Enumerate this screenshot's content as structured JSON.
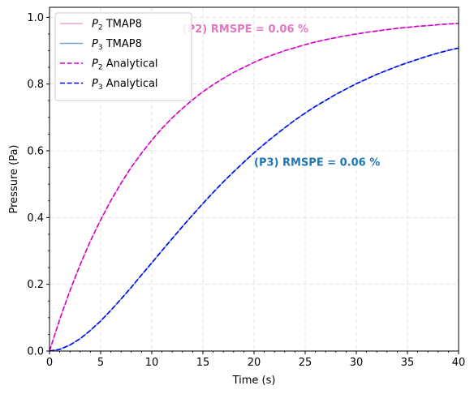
{
  "chart_data": {
    "type": "line",
    "xlabel": "Time (s)",
    "ylabel": "Pressure (Pa)",
    "xlim": [
      0,
      40
    ],
    "ylim": [
      0,
      1.03
    ],
    "xticks": [
      0,
      5,
      10,
      15,
      20,
      25,
      30,
      35,
      40
    ],
    "xtick_labels": [
      "0",
      "5",
      "10",
      "15",
      "20",
      "25",
      "30",
      "35",
      "40"
    ],
    "yticks": [
      0.0,
      0.2,
      0.4,
      0.6,
      0.8,
      1.0
    ],
    "ytick_labels": [
      "0.0",
      "0.2",
      "0.4",
      "0.6",
      "0.8",
      "1.0"
    ],
    "grid": true,
    "legend_position": "top-left",
    "x": [
      0,
      1,
      2,
      3,
      4,
      5,
      6,
      7,
      8,
      9,
      10,
      11,
      12,
      13,
      14,
      15,
      16,
      17,
      18,
      19,
      20,
      21,
      22,
      23,
      24,
      25,
      26,
      27,
      28,
      29,
      30,
      31,
      32,
      33,
      34,
      35,
      36,
      37,
      38,
      39,
      40
    ],
    "series": [
      {
        "name": "TMAP8",
        "subscript_var": "P",
        "subscript": "2",
        "color": "#f4a3d8",
        "style": "solid",
        "values": [
          0.0,
          0.095,
          0.181,
          0.259,
          0.33,
          0.393,
          0.451,
          0.503,
          0.551,
          0.593,
          0.632,
          0.667,
          0.699,
          0.727,
          0.753,
          0.777,
          0.798,
          0.817,
          0.835,
          0.85,
          0.865,
          0.878,
          0.889,
          0.9,
          0.909,
          0.918,
          0.926,
          0.933,
          0.939,
          0.945,
          0.95,
          0.955,
          0.959,
          0.963,
          0.967,
          0.97,
          0.973,
          0.975,
          0.978,
          0.98,
          0.982
        ]
      },
      {
        "name": "TMAP8",
        "subscript_var": "P",
        "subscript": "3",
        "color": "#6ea6d6",
        "style": "solid",
        "values": [
          0.0,
          0.005,
          0.018,
          0.037,
          0.062,
          0.09,
          0.122,
          0.156,
          0.191,
          0.228,
          0.264,
          0.301,
          0.337,
          0.373,
          0.408,
          0.442,
          0.475,
          0.507,
          0.537,
          0.566,
          0.594,
          0.62,
          0.645,
          0.669,
          0.692,
          0.713,
          0.733,
          0.751,
          0.769,
          0.785,
          0.801,
          0.815,
          0.829,
          0.841,
          0.853,
          0.864,
          0.874,
          0.884,
          0.893,
          0.901,
          0.908
        ]
      },
      {
        "name": "Analytical",
        "subscript_var": "P",
        "subscript": "2",
        "color": "#cc00cc",
        "style": "dashed",
        "values": [
          0.0,
          0.095,
          0.181,
          0.259,
          0.33,
          0.393,
          0.451,
          0.503,
          0.551,
          0.593,
          0.632,
          0.667,
          0.699,
          0.727,
          0.753,
          0.777,
          0.798,
          0.817,
          0.835,
          0.85,
          0.865,
          0.878,
          0.889,
          0.9,
          0.909,
          0.918,
          0.926,
          0.933,
          0.939,
          0.945,
          0.95,
          0.955,
          0.959,
          0.963,
          0.967,
          0.97,
          0.973,
          0.975,
          0.978,
          0.98,
          0.982
        ]
      },
      {
        "name": "Analytical",
        "subscript_var": "P",
        "subscript": "3",
        "color": "#0000ee",
        "style": "dashed",
        "values": [
          0.0,
          0.005,
          0.018,
          0.037,
          0.062,
          0.09,
          0.122,
          0.156,
          0.191,
          0.228,
          0.264,
          0.301,
          0.337,
          0.373,
          0.408,
          0.442,
          0.475,
          0.507,
          0.537,
          0.566,
          0.594,
          0.62,
          0.645,
          0.669,
          0.692,
          0.713,
          0.733,
          0.751,
          0.769,
          0.785,
          0.801,
          0.815,
          0.829,
          0.841,
          0.853,
          0.864,
          0.874,
          0.884,
          0.893,
          0.901,
          0.908
        ]
      }
    ],
    "annotations": [
      {
        "text": "(P2) RMSPE = 0.06 %",
        "x": 13,
        "y": 0.955,
        "color": "#e377c2"
      },
      {
        "text": "(P3) RMSPE = 0.06 %",
        "x": 20,
        "y": 0.555,
        "color": "#1f77b4"
      }
    ]
  }
}
